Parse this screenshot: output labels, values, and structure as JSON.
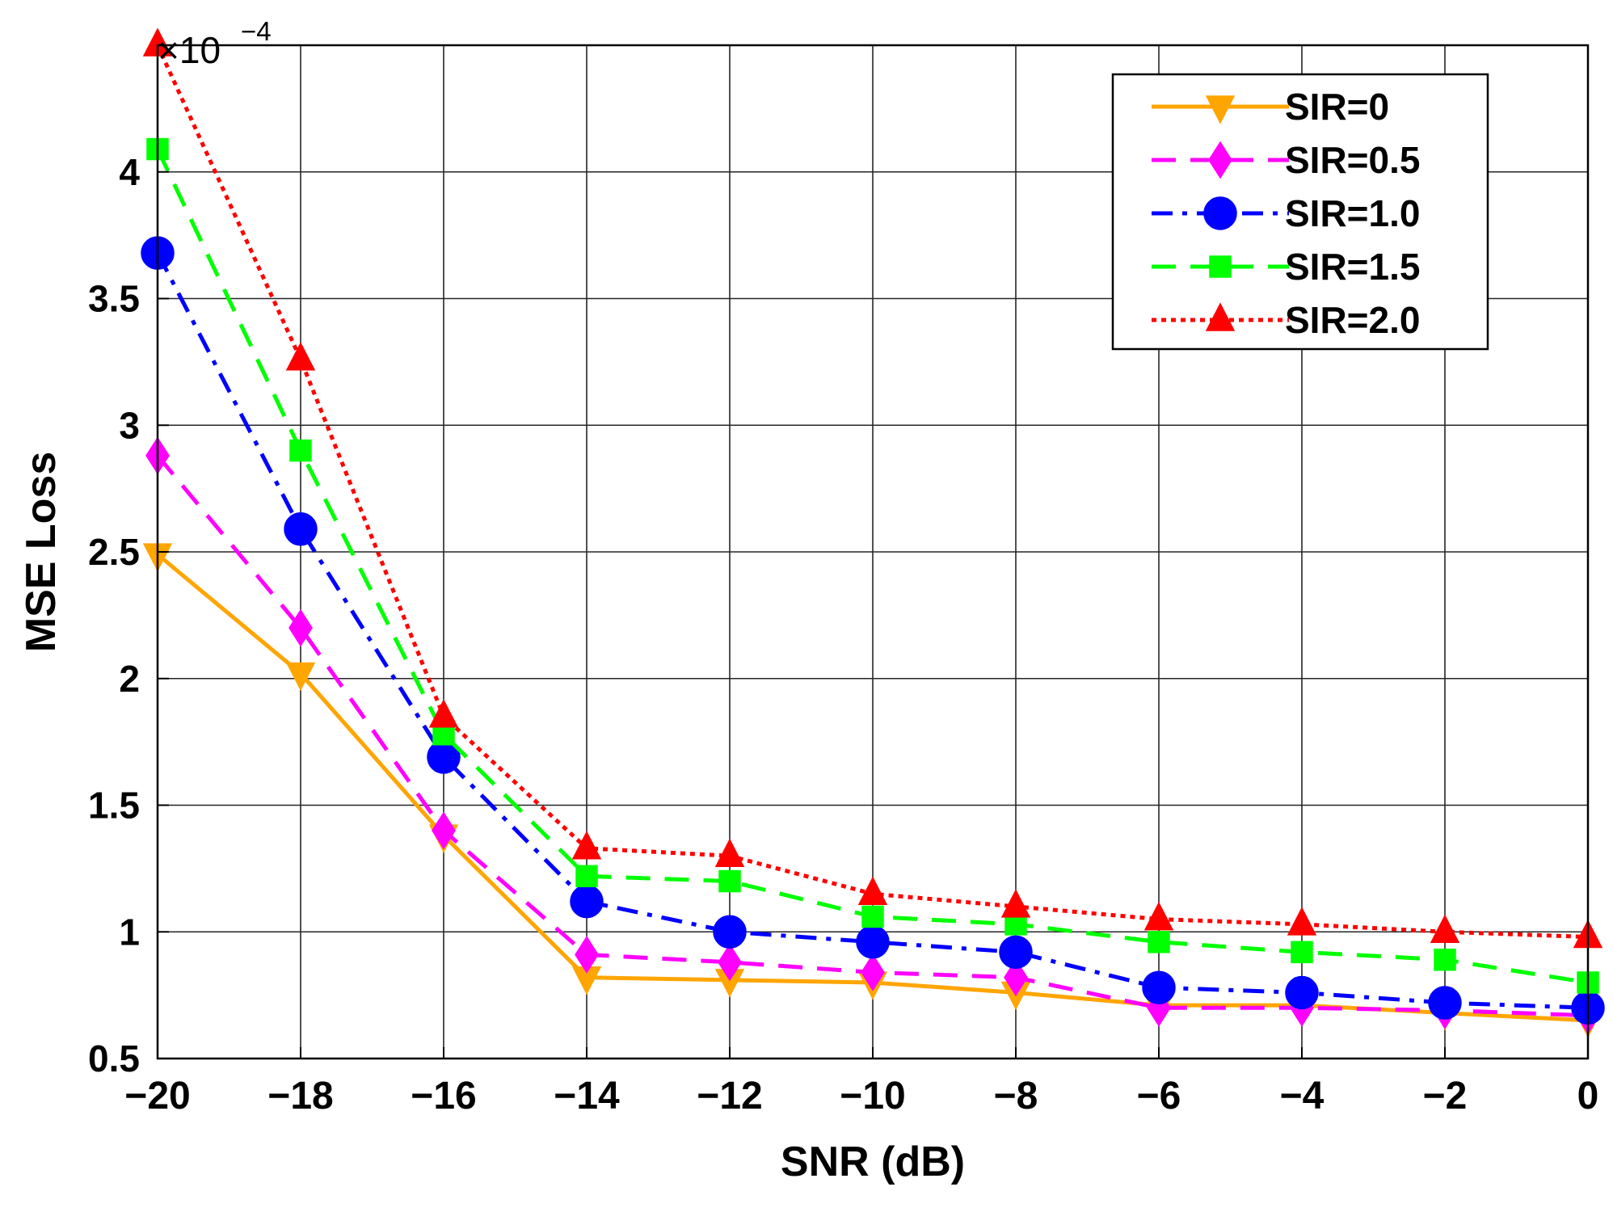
{
  "chart_data": {
    "type": "line",
    "xlabel": "SNR (dB)",
    "ylabel": "MSE Loss",
    "y_multiplier_label": "×10",
    "y_multiplier_exponent": "−4",
    "xlim": [
      -20,
      0
    ],
    "ylim": [
      0.5,
      4.5
    ],
    "grid": true,
    "legend_position": "top-right",
    "x": [
      -20,
      -18,
      -16,
      -14,
      -12,
      -10,
      -8,
      -6,
      -4,
      -2,
      0
    ],
    "x_tick_labels": [
      "−20",
      "−18",
      "−16",
      "−14",
      "−12",
      "−10",
      "−8",
      "−6",
      "−4",
      "−2",
      "0"
    ],
    "y_ticks": [
      0.5,
      1,
      1.5,
      2,
      2.5,
      3,
      3.5,
      4
    ],
    "y_tick_labels": [
      "0.5",
      "1",
      "1.5",
      "2",
      "2.5",
      "3",
      "3.5",
      "4"
    ],
    "series": [
      {
        "name": "SIR=0",
        "color": "#FFA500",
        "line_style": "solid",
        "marker": "triangle-down",
        "values": [
          2.49,
          2.02,
          1.38,
          0.82,
          0.81,
          0.8,
          0.76,
          0.71,
          0.71,
          0.68,
          0.65
        ]
      },
      {
        "name": "SIR=0.5",
        "color": "#FF00FF",
        "line_style": "dashed",
        "marker": "diamond",
        "values": [
          2.88,
          2.2,
          1.4,
          0.91,
          0.88,
          0.84,
          0.82,
          0.7,
          0.7,
          0.69,
          0.67
        ]
      },
      {
        "name": "SIR=1.0",
        "color": "#0000FF",
        "line_style": "dash-dot",
        "marker": "circle",
        "values": [
          3.68,
          2.59,
          1.69,
          1.12,
          1.0,
          0.96,
          0.92,
          0.78,
          0.76,
          0.72,
          0.7
        ]
      },
      {
        "name": "SIR=1.5",
        "color": "#00FF00",
        "line_style": "dashed",
        "marker": "square",
        "values": [
          4.09,
          2.9,
          1.78,
          1.22,
          1.2,
          1.06,
          1.03,
          0.96,
          0.92,
          0.89,
          0.8
        ]
      },
      {
        "name": "SIR=2.0",
        "color": "#FF0000",
        "line_style": "dotted",
        "marker": "triangle-up",
        "values": [
          4.5,
          3.26,
          1.85,
          1.33,
          1.3,
          1.15,
          1.1,
          1.05,
          1.03,
          1.0,
          0.98
        ]
      }
    ]
  }
}
